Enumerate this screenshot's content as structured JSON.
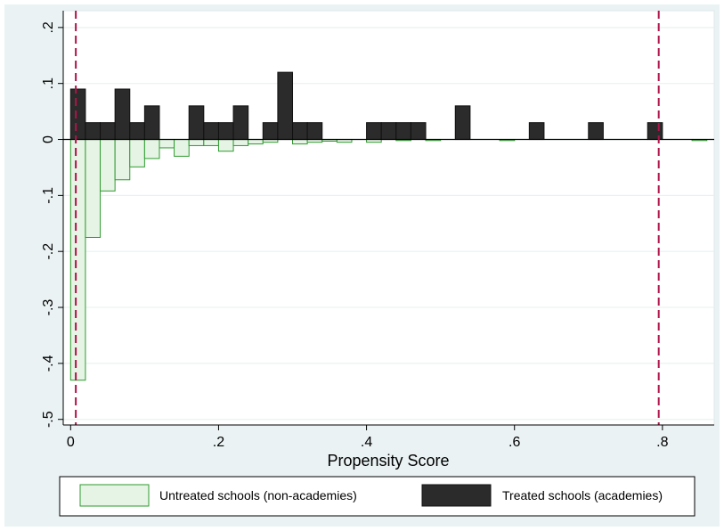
{
  "chart_data": {
    "type": "bar",
    "title": "",
    "xlabel": "Propensity Score",
    "ylabel": "",
    "xlim": [
      -0.01,
      0.87
    ],
    "ylim": [
      -0.51,
      0.23
    ],
    "x_ticks": [
      {
        "value": 0,
        "label": "0"
      },
      {
        "value": 0.2,
        "label": ".2"
      },
      {
        "value": 0.4,
        "label": ".4"
      },
      {
        "value": 0.6,
        "label": ".6"
      },
      {
        "value": 0.8,
        "label": ".8"
      }
    ],
    "y_ticks": [
      {
        "value": 0.2,
        "label": ".2"
      },
      {
        "value": 0.1,
        "label": ".1"
      },
      {
        "value": 0,
        "label": "0"
      },
      {
        "value": -0.1,
        "label": "-.1"
      },
      {
        "value": -0.2,
        "label": "-.2"
      },
      {
        "value": -0.3,
        "label": "-.3"
      },
      {
        "value": -0.4,
        "label": "-.4"
      },
      {
        "value": -0.5,
        "label": "-.5"
      }
    ],
    "bin_width": 0.02,
    "grid": true,
    "legend_position": "bottom",
    "reference_lines": [
      0.007,
      0.795
    ],
    "reference_line_color": "#b0134a",
    "series": [
      {
        "name": "Untreated schools (non-academies)",
        "fill": "#e6f4e6",
        "stroke": "#2e9a2e",
        "points": [
          {
            "x": 0.01,
            "y": -0.43
          },
          {
            "x": 0.03,
            "y": -0.175
          },
          {
            "x": 0.05,
            "y": -0.092
          },
          {
            "x": 0.07,
            "y": -0.072
          },
          {
            "x": 0.09,
            "y": -0.049
          },
          {
            "x": 0.11,
            "y": -0.034
          },
          {
            "x": 0.13,
            "y": -0.015
          },
          {
            "x": 0.15,
            "y": -0.03
          },
          {
            "x": 0.17,
            "y": -0.011
          },
          {
            "x": 0.19,
            "y": -0.011
          },
          {
            "x": 0.21,
            "y": -0.021
          },
          {
            "x": 0.23,
            "y": -0.011
          },
          {
            "x": 0.25,
            "y": -0.008
          },
          {
            "x": 0.27,
            "y": -0.005
          },
          {
            "x": 0.31,
            "y": -0.008
          },
          {
            "x": 0.33,
            "y": -0.005
          },
          {
            "x": 0.35,
            "y": -0.003
          },
          {
            "x": 0.37,
            "y": -0.005
          },
          {
            "x": 0.41,
            "y": -0.005
          },
          {
            "x": 0.45,
            "y": -0.002
          },
          {
            "x": 0.49,
            "y": -0.002
          },
          {
            "x": 0.59,
            "y": -0.002
          },
          {
            "x": 0.85,
            "y": -0.002
          }
        ]
      },
      {
        "name": "Treated schools (academies)",
        "fill": "#2b2b2b",
        "stroke": "#111111",
        "points": [
          {
            "x": 0.01,
            "y": 0.09
          },
          {
            "x": 0.03,
            "y": 0.03
          },
          {
            "x": 0.05,
            "y": 0.03
          },
          {
            "x": 0.07,
            "y": 0.09
          },
          {
            "x": 0.09,
            "y": 0.03
          },
          {
            "x": 0.11,
            "y": 0.06
          },
          {
            "x": 0.17,
            "y": 0.06
          },
          {
            "x": 0.19,
            "y": 0.03
          },
          {
            "x": 0.21,
            "y": 0.03
          },
          {
            "x": 0.23,
            "y": 0.06
          },
          {
            "x": 0.27,
            "y": 0.03
          },
          {
            "x": 0.29,
            "y": 0.12
          },
          {
            "x": 0.31,
            "y": 0.03
          },
          {
            "x": 0.33,
            "y": 0.03
          },
          {
            "x": 0.41,
            "y": 0.03
          },
          {
            "x": 0.43,
            "y": 0.03
          },
          {
            "x": 0.45,
            "y": 0.03
          },
          {
            "x": 0.47,
            "y": 0.03
          },
          {
            "x": 0.53,
            "y": 0.06
          },
          {
            "x": 0.63,
            "y": 0.03
          },
          {
            "x": 0.71,
            "y": 0.03
          },
          {
            "x": 0.79,
            "y": 0.03
          }
        ]
      }
    ]
  }
}
